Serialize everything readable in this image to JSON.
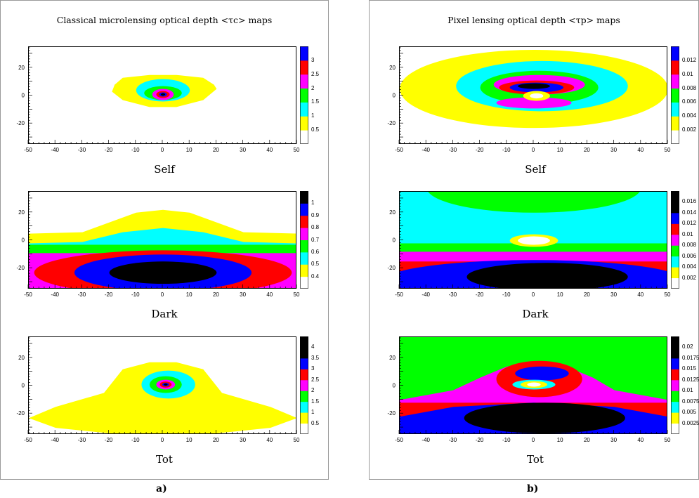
{
  "panels": [
    {
      "id": "a",
      "title": "Classical microlensing optical depth <τc> maps",
      "label": "a)",
      "plots": [
        {
          "caption": "Self",
          "scale": [
            0.5,
            1,
            1.5,
            2,
            2.5,
            3
          ],
          "colors": [
            "#ffff00",
            "#00ffff",
            "#00ff00",
            "#ff00ff",
            "#ff0000",
            "#0000ff",
            "#000000"
          ],
          "shape": "self-classical"
        },
        {
          "caption": "Dark",
          "scale": [
            0.4,
            0.5,
            0.6,
            0.7,
            0.8,
            0.9,
            1
          ],
          "colors": [
            "#ffff00",
            "#00ffff",
            "#00ff00",
            "#ff00ff",
            "#ff0000",
            "#0000ff",
            "#000000"
          ],
          "shape": "dark-classical"
        },
        {
          "caption": "Tot",
          "scale": [
            0.5,
            1,
            1.5,
            2,
            2.5,
            3,
            3.5,
            4
          ],
          "colors": [
            "#ffff00",
            "#00ffff",
            "#00ff00",
            "#ff00ff",
            "#ff0000",
            "#0000ff",
            "#000000"
          ],
          "shape": "tot-classical"
        }
      ]
    },
    {
      "id": "b",
      "title": "Pixel lensing optical depth <τp> maps",
      "label": "b)",
      "plots": [
        {
          "caption": "Self",
          "scale": [
            0.002,
            0.004,
            0.006,
            0.008,
            0.01,
            0.012
          ],
          "colors": [
            "#ffff00",
            "#00ffff",
            "#00ff00",
            "#ff00ff",
            "#ff0000",
            "#0000ff",
            "#000000"
          ],
          "shape": "self-pixel"
        },
        {
          "caption": "Dark",
          "scale": [
            0.002,
            0.004,
            0.006,
            0.008,
            0.01,
            0.012,
            0.014,
            0.016
          ],
          "colors": [
            "#ffff00",
            "#00ffff",
            "#00ff00",
            "#ff00ff",
            "#ff0000",
            "#0000ff",
            "#000000"
          ],
          "shape": "dark-pixel"
        },
        {
          "caption": "Tot",
          "scale": [
            0.0025,
            0.005,
            0.0075,
            0.01,
            0.0125,
            0.015,
            0.0175,
            0.02
          ],
          "colors": [
            "#ffff00",
            "#00ffff",
            "#00ff00",
            "#ff00ff",
            "#ff0000",
            "#0000ff",
            "#000000"
          ],
          "shape": "tot-pixel"
        }
      ]
    }
  ],
  "chart_data": [
    {
      "type": "heatmap",
      "panel": "a",
      "name": "Self",
      "title": "Classical microlensing optical depth <τc> maps",
      "x_range": [
        -50,
        50
      ],
      "y_range": [
        -35,
        35
      ],
      "x_ticks": [
        -50,
        -40,
        -30,
        -20,
        -10,
        0,
        10,
        20,
        30,
        40,
        50
      ],
      "y_ticks": [
        -20,
        0,
        20
      ],
      "color_scale": [
        0.5,
        1,
        1.5,
        2,
        2.5,
        3
      ]
    },
    {
      "type": "heatmap",
      "panel": "a",
      "name": "Dark",
      "x_range": [
        -50,
        50
      ],
      "y_range": [
        -35,
        35
      ],
      "x_ticks": [
        -50,
        -40,
        -30,
        -20,
        -10,
        0,
        10,
        20,
        30,
        40,
        50
      ],
      "y_ticks": [
        -20,
        0,
        20
      ],
      "color_scale": [
        0.4,
        0.5,
        0.6,
        0.7,
        0.8,
        0.9,
        1
      ]
    },
    {
      "type": "heatmap",
      "panel": "a",
      "name": "Tot",
      "x_range": [
        -50,
        50
      ],
      "y_range": [
        -35,
        35
      ],
      "x_ticks": [
        -50,
        -40,
        -30,
        -20,
        -10,
        0,
        10,
        20,
        30,
        40,
        50
      ],
      "y_ticks": [
        -20,
        0,
        20
      ],
      "color_scale": [
        0.5,
        1,
        1.5,
        2,
        2.5,
        3,
        3.5,
        4
      ]
    },
    {
      "type": "heatmap",
      "panel": "b",
      "name": "Self",
      "title": "Pixel lensing optical depth <τp> maps",
      "x_range": [
        -50,
        50
      ],
      "y_range": [
        -35,
        35
      ],
      "x_ticks": [
        -50,
        -40,
        -30,
        -20,
        -10,
        0,
        10,
        20,
        30,
        40,
        50
      ],
      "y_ticks": [
        -20,
        0,
        20
      ],
      "color_scale": [
        0.002,
        0.004,
        0.006,
        0.008,
        0.01,
        0.012
      ]
    },
    {
      "type": "heatmap",
      "panel": "b",
      "name": "Dark",
      "x_range": [
        -50,
        50
      ],
      "y_range": [
        -35,
        35
      ],
      "x_ticks": [
        -50,
        -40,
        -30,
        -20,
        -10,
        0,
        10,
        20,
        30,
        40,
        50
      ],
      "y_ticks": [
        -20,
        0,
        20
      ],
      "color_scale": [
        0.002,
        0.004,
        0.006,
        0.008,
        0.01,
        0.012,
        0.014,
        0.016
      ]
    },
    {
      "type": "heatmap",
      "panel": "b",
      "name": "Tot",
      "x_range": [
        -50,
        50
      ],
      "y_range": [
        -35,
        35
      ],
      "x_ticks": [
        -50,
        -40,
        -30,
        -20,
        -10,
        0,
        10,
        20,
        30,
        40,
        50
      ],
      "y_ticks": [
        -20,
        0,
        20
      ],
      "color_scale": [
        0.0025,
        0.005,
        0.0075,
        0.01,
        0.0125,
        0.015,
        0.0175,
        0.02
      ]
    }
  ]
}
